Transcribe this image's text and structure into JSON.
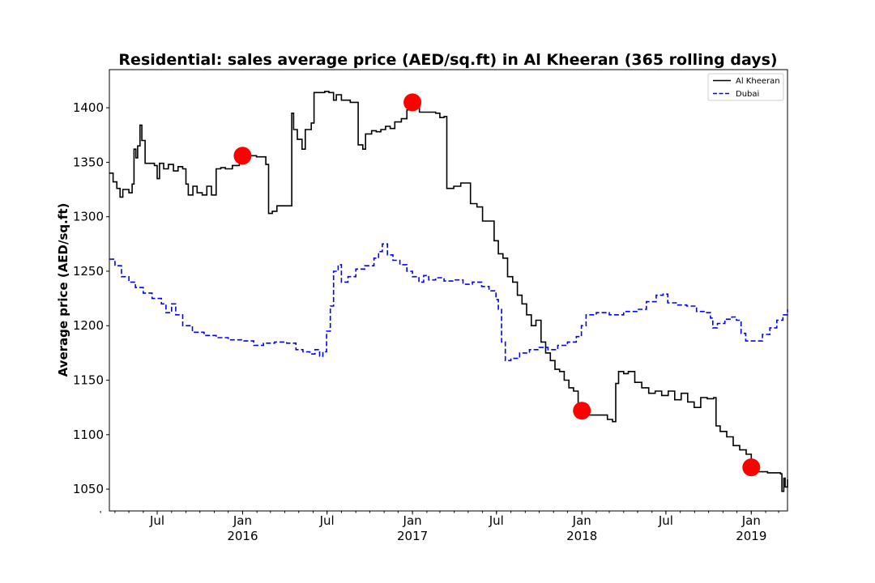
{
  "chart_data": {
    "type": "line",
    "title": "Residential: sales average price (AED/sq.ft) in Al Kheeran (365 rolling days)",
    "xlabel": "",
    "ylabel": "Average price (AED/sq.ft)",
    "xlim": [
      "2015-03-20",
      "2019-03-20"
    ],
    "ylim": [
      1030,
      1435
    ],
    "yticks": [
      1050,
      1100,
      1150,
      1200,
      1250,
      1300,
      1350,
      1400
    ],
    "xticks": [
      {
        "date": "2015-07-01",
        "label": "Jul",
        "sublabel": ""
      },
      {
        "date": "2016-01-01",
        "label": "Jan",
        "sublabel": "2016"
      },
      {
        "date": "2016-07-01",
        "label": "Jul",
        "sublabel": ""
      },
      {
        "date": "2017-01-01",
        "label": "Jan",
        "sublabel": "2017"
      },
      {
        "date": "2017-07-01",
        "label": "Jul",
        "sublabel": ""
      },
      {
        "date": "2018-01-01",
        "label": "Jan",
        "sublabel": "2018"
      },
      {
        "date": "2018-07-01",
        "label": "Jul",
        "sublabel": ""
      },
      {
        "date": "2019-01-01",
        "label": "Jan",
        "sublabel": "2019"
      }
    ],
    "legend_position": "top-right",
    "grid": false,
    "series": [
      {
        "name": "Al Kheeran",
        "color": "#000000",
        "style": "solid",
        "points": [
          [
            "2015-03-20",
            1340
          ],
          [
            "2015-03-28",
            1332
          ],
          [
            "2015-04-05",
            1326
          ],
          [
            "2015-04-12",
            1318
          ],
          [
            "2015-04-18",
            1325
          ],
          [
            "2015-05-01",
            1322
          ],
          [
            "2015-05-08",
            1330
          ],
          [
            "2015-05-12",
            1362
          ],
          [
            "2015-05-16",
            1354
          ],
          [
            "2015-05-20",
            1365
          ],
          [
            "2015-05-25",
            1384
          ],
          [
            "2015-05-29",
            1370
          ],
          [
            "2015-06-05",
            1349
          ],
          [
            "2015-06-25",
            1347
          ],
          [
            "2015-07-01",
            1335
          ],
          [
            "2015-07-06",
            1349
          ],
          [
            "2015-07-15",
            1344
          ],
          [
            "2015-07-25",
            1348
          ],
          [
            "2015-08-05",
            1342
          ],
          [
            "2015-08-15",
            1346
          ],
          [
            "2015-08-25",
            1344
          ],
          [
            "2015-09-01",
            1330
          ],
          [
            "2015-09-06",
            1320
          ],
          [
            "2015-09-16",
            1328
          ],
          [
            "2015-09-25",
            1322
          ],
          [
            "2015-10-06",
            1320
          ],
          [
            "2015-10-16",
            1328
          ],
          [
            "2015-10-26",
            1320
          ],
          [
            "2015-11-05",
            1344
          ],
          [
            "2015-11-15",
            1345
          ],
          [
            "2015-11-25",
            1344
          ],
          [
            "2015-12-10",
            1347
          ],
          [
            "2015-12-25",
            1352
          ],
          [
            "2016-01-15",
            1356
          ],
          [
            "2016-01-31",
            1355
          ],
          [
            "2016-02-20",
            1348
          ],
          [
            "2016-02-26",
            1303
          ],
          [
            "2016-03-05",
            1305
          ],
          [
            "2016-03-15",
            1310
          ],
          [
            "2016-04-10",
            1310
          ],
          [
            "2016-04-16",
            1395
          ],
          [
            "2016-04-20",
            1380
          ],
          [
            "2016-04-28",
            1371
          ],
          [
            "2016-05-08",
            1362
          ],
          [
            "2016-05-15",
            1380
          ],
          [
            "2016-05-28",
            1386
          ],
          [
            "2016-06-03",
            1414
          ],
          [
            "2016-06-26",
            1415
          ],
          [
            "2016-07-05",
            1414
          ],
          [
            "2016-07-15",
            1407
          ],
          [
            "2016-07-21",
            1412
          ],
          [
            "2016-08-01",
            1407
          ],
          [
            "2016-08-20",
            1405
          ],
          [
            "2016-09-06",
            1366
          ],
          [
            "2016-09-16",
            1362
          ],
          [
            "2016-09-22",
            1376
          ],
          [
            "2016-10-05",
            1379
          ],
          [
            "2016-10-15",
            1378
          ],
          [
            "2016-10-25",
            1380
          ],
          [
            "2016-11-04",
            1383
          ],
          [
            "2016-11-14",
            1381
          ],
          [
            "2016-11-24",
            1387
          ],
          [
            "2016-12-08",
            1390
          ],
          [
            "2016-12-20",
            1398
          ],
          [
            "2017-01-01",
            1405
          ],
          [
            "2017-01-16",
            1396
          ],
          [
            "2017-02-20",
            1395
          ],
          [
            "2017-03-01",
            1391
          ],
          [
            "2017-03-10",
            1392
          ],
          [
            "2017-03-16",
            1326
          ],
          [
            "2017-03-31",
            1328
          ],
          [
            "2017-04-15",
            1331
          ],
          [
            "2017-05-01",
            1331
          ],
          [
            "2017-05-06",
            1312
          ],
          [
            "2017-05-20",
            1309
          ],
          [
            "2017-06-01",
            1296
          ],
          [
            "2017-06-20",
            1296
          ],
          [
            "2017-06-26",
            1278
          ],
          [
            "2017-07-05",
            1266
          ],
          [
            "2017-07-15",
            1262
          ],
          [
            "2017-07-25",
            1245
          ],
          [
            "2017-08-05",
            1240
          ],
          [
            "2017-08-15",
            1228
          ],
          [
            "2017-08-25",
            1220
          ],
          [
            "2017-09-04",
            1210
          ],
          [
            "2017-09-14",
            1200
          ],
          [
            "2017-09-24",
            1205
          ],
          [
            "2017-10-05",
            1185
          ],
          [
            "2017-10-15",
            1175
          ],
          [
            "2017-10-25",
            1168
          ],
          [
            "2017-11-04",
            1160
          ],
          [
            "2017-11-14",
            1158
          ],
          [
            "2017-11-24",
            1150
          ],
          [
            "2017-12-04",
            1143
          ],
          [
            "2017-12-14",
            1140
          ],
          [
            "2017-12-24",
            1125
          ],
          [
            "2018-01-01",
            1122
          ],
          [
            "2018-01-11",
            1118
          ],
          [
            "2018-01-31",
            1118
          ],
          [
            "2018-02-15",
            1118
          ],
          [
            "2018-02-25",
            1114
          ],
          [
            "2018-03-08",
            1112
          ],
          [
            "2018-03-15",
            1147
          ],
          [
            "2018-03-21",
            1158
          ],
          [
            "2018-04-01",
            1156
          ],
          [
            "2018-04-11",
            1158
          ],
          [
            "2018-04-25",
            1148
          ],
          [
            "2018-05-10",
            1143
          ],
          [
            "2018-05-25",
            1138
          ],
          [
            "2018-06-08",
            1140
          ],
          [
            "2018-06-22",
            1136
          ],
          [
            "2018-07-06",
            1140
          ],
          [
            "2018-07-20",
            1132
          ],
          [
            "2018-08-03",
            1138
          ],
          [
            "2018-08-17",
            1130
          ],
          [
            "2018-08-31",
            1125
          ],
          [
            "2018-09-14",
            1134
          ],
          [
            "2018-09-28",
            1133
          ],
          [
            "2018-10-12",
            1134
          ],
          [
            "2018-10-17",
            1108
          ],
          [
            "2018-10-26",
            1103
          ],
          [
            "2018-11-09",
            1098
          ],
          [
            "2018-11-23",
            1090
          ],
          [
            "2018-12-07",
            1086
          ],
          [
            "2018-12-21",
            1082
          ],
          [
            "2019-01-01",
            1070
          ],
          [
            "2019-01-11",
            1066
          ],
          [
            "2019-02-05",
            1065
          ],
          [
            "2019-02-25",
            1065
          ],
          [
            "2019-03-05",
            1064
          ],
          [
            "2019-03-08",
            1048
          ],
          [
            "2019-03-12",
            1060
          ],
          [
            "2019-03-15",
            1052
          ],
          [
            "2019-03-20",
            1059
          ]
        ]
      },
      {
        "name": "Dubai",
        "color": "#0000ff",
        "style": "dashed",
        "points": [
          [
            "2015-03-20",
            1261
          ],
          [
            "2015-04-01",
            1255
          ],
          [
            "2015-04-15",
            1245
          ],
          [
            "2015-05-01",
            1240
          ],
          [
            "2015-05-15",
            1235
          ],
          [
            "2015-06-01",
            1230
          ],
          [
            "2015-06-20",
            1225
          ],
          [
            "2015-07-10",
            1220
          ],
          [
            "2015-07-20",
            1212
          ],
          [
            "2015-08-01",
            1220
          ],
          [
            "2015-08-10",
            1210
          ],
          [
            "2015-08-25",
            1200
          ],
          [
            "2015-09-15",
            1194
          ],
          [
            "2015-10-10",
            1191
          ],
          [
            "2015-11-05",
            1189
          ],
          [
            "2015-12-01",
            1187
          ],
          [
            "2016-01-01",
            1186
          ],
          [
            "2016-01-25",
            1182
          ],
          [
            "2016-02-15",
            1184
          ],
          [
            "2016-03-10",
            1185
          ],
          [
            "2016-04-05",
            1184
          ],
          [
            "2016-04-25",
            1178
          ],
          [
            "2016-05-10",
            1176
          ],
          [
            "2016-05-25",
            1174
          ],
          [
            "2016-06-05",
            1178
          ],
          [
            "2016-06-15",
            1172
          ],
          [
            "2016-06-22",
            1176
          ],
          [
            "2016-06-30",
            1195
          ],
          [
            "2016-07-08",
            1218
          ],
          [
            "2016-07-15",
            1250
          ],
          [
            "2016-07-25",
            1256
          ],
          [
            "2016-08-01",
            1240
          ],
          [
            "2016-08-15",
            1245
          ],
          [
            "2016-09-01",
            1252
          ],
          [
            "2016-09-20",
            1255
          ],
          [
            "2016-10-10",
            1262
          ],
          [
            "2016-10-20",
            1268
          ],
          [
            "2016-10-28",
            1275
          ],
          [
            "2016-11-08",
            1265
          ],
          [
            "2016-11-20",
            1260
          ],
          [
            "2016-12-05",
            1256
          ],
          [
            "2016-12-20",
            1250
          ],
          [
            "2017-01-01",
            1245
          ],
          [
            "2017-01-15",
            1240
          ],
          [
            "2017-01-25",
            1246
          ],
          [
            "2017-02-05",
            1242
          ],
          [
            "2017-02-20",
            1244
          ],
          [
            "2017-03-10",
            1241
          ],
          [
            "2017-04-01",
            1242
          ],
          [
            "2017-04-20",
            1238
          ],
          [
            "2017-05-10",
            1240
          ],
          [
            "2017-05-30",
            1236
          ],
          [
            "2017-06-15",
            1232
          ],
          [
            "2017-06-30",
            1224
          ],
          [
            "2017-07-05",
            1215
          ],
          [
            "2017-07-12",
            1185
          ],
          [
            "2017-07-20",
            1168
          ],
          [
            "2017-08-01",
            1170
          ],
          [
            "2017-08-20",
            1175
          ],
          [
            "2017-09-10",
            1178
          ],
          [
            "2017-10-01",
            1180
          ],
          [
            "2017-10-20",
            1178
          ],
          [
            "2017-11-10",
            1182
          ],
          [
            "2017-12-01",
            1185
          ],
          [
            "2017-12-20",
            1190
          ],
          [
            "2017-12-31",
            1200
          ],
          [
            "2018-01-10",
            1210
          ],
          [
            "2018-02-01",
            1212
          ],
          [
            "2018-03-01",
            1210
          ],
          [
            "2018-04-01",
            1213
          ],
          [
            "2018-05-01",
            1215
          ],
          [
            "2018-05-20",
            1222
          ],
          [
            "2018-06-10",
            1228
          ],
          [
            "2018-06-25",
            1229
          ],
          [
            "2018-07-05",
            1221
          ],
          [
            "2018-07-25",
            1219
          ],
          [
            "2018-08-15",
            1218
          ],
          [
            "2018-09-05",
            1213
          ],
          [
            "2018-09-25",
            1212
          ],
          [
            "2018-10-05",
            1207
          ],
          [
            "2018-10-10",
            1198
          ],
          [
            "2018-10-20",
            1202
          ],
          [
            "2018-11-05",
            1206
          ],
          [
            "2018-11-20",
            1208
          ],
          [
            "2018-11-30",
            1205
          ],
          [
            "2018-12-10",
            1193
          ],
          [
            "2018-12-20",
            1186
          ],
          [
            "2019-01-10",
            1186
          ],
          [
            "2019-01-25",
            1192
          ],
          [
            "2019-02-10",
            1198
          ],
          [
            "2019-02-25",
            1205
          ],
          [
            "2019-03-10",
            1210
          ],
          [
            "2019-03-20",
            1215
          ]
        ]
      }
    ],
    "markers": {
      "color": "#ff0000",
      "points": [
        [
          "2016-01-01",
          1356
        ],
        [
          "2017-01-01",
          1405
        ],
        [
          "2018-01-01",
          1122
        ],
        [
          "2019-01-01",
          1070
        ]
      ]
    }
  }
}
